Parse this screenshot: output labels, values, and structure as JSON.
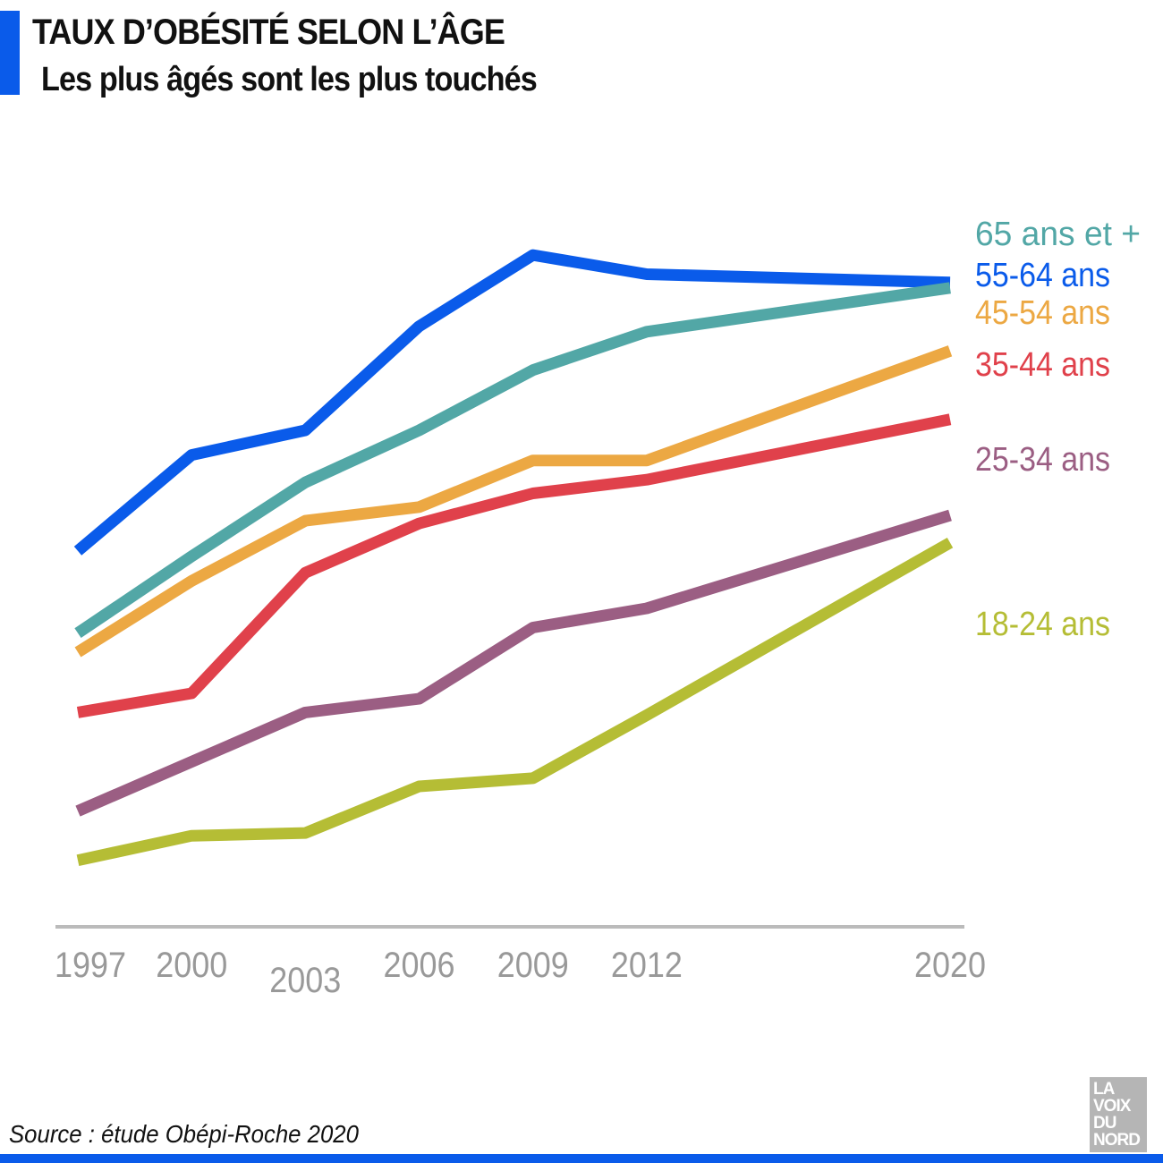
{
  "header": {
    "title": "TAUX D’OBÉSITÉ SELON L’ÂGE",
    "subtitle": "Les plus âgés sont les plus touchés",
    "accent_color": "#0a5bea"
  },
  "footer": {
    "source": "Source : étude Obépi-Roche 2020",
    "logo_lines": [
      "LA",
      "VOIX",
      "DU",
      "NORD"
    ]
  },
  "chart_data": {
    "type": "line",
    "title": "TAUX D’OBÉSITÉ SELON L’ÂGE",
    "subtitle": "Les plus âgés sont les plus touchés",
    "x": [
      1997,
      2000,
      2003,
      2006,
      2009,
      2012,
      2020
    ],
    "x_tick_labels": [
      "1997",
      "2000",
      "2003",
      "2006",
      "2009",
      "2012",
      "2020"
    ],
    "ylim": [
      0,
      26
    ],
    "grid": false,
    "legend": "direct-labels-right",
    "axis_color": "#bbbbbb",
    "tick_color": "#999999",
    "series": [
      {
        "name": "65 ans et +",
        "color": "#52a7a6",
        "values": [
          10.4,
          13.2,
          15.9,
          17.8,
          20.0,
          21.4,
          23.0
        ]
      },
      {
        "name": "55-64 ans",
        "color": "#0a5bea",
        "values": [
          13.4,
          16.9,
          17.8,
          21.6,
          24.2,
          23.5,
          23.2
        ]
      },
      {
        "name": "45-54 ans",
        "color": "#eca843",
        "values": [
          9.7,
          12.3,
          14.5,
          15.0,
          16.7,
          16.7,
          20.7
        ]
      },
      {
        "name": "35-44 ans",
        "color": "#e0414b",
        "values": [
          7.5,
          8.2,
          12.6,
          14.4,
          15.5,
          16.0,
          18.2
        ]
      },
      {
        "name": "25-34 ans",
        "color": "#9b5e83",
        "values": [
          3.9,
          5.7,
          7.5,
          8.0,
          10.6,
          11.3,
          14.7
        ]
      },
      {
        "name": "18-24 ans",
        "color": "#b5bd35",
        "values": [
          2.1,
          3.0,
          3.1,
          4.8,
          5.1,
          7.4,
          13.7
        ]
      }
    ]
  }
}
